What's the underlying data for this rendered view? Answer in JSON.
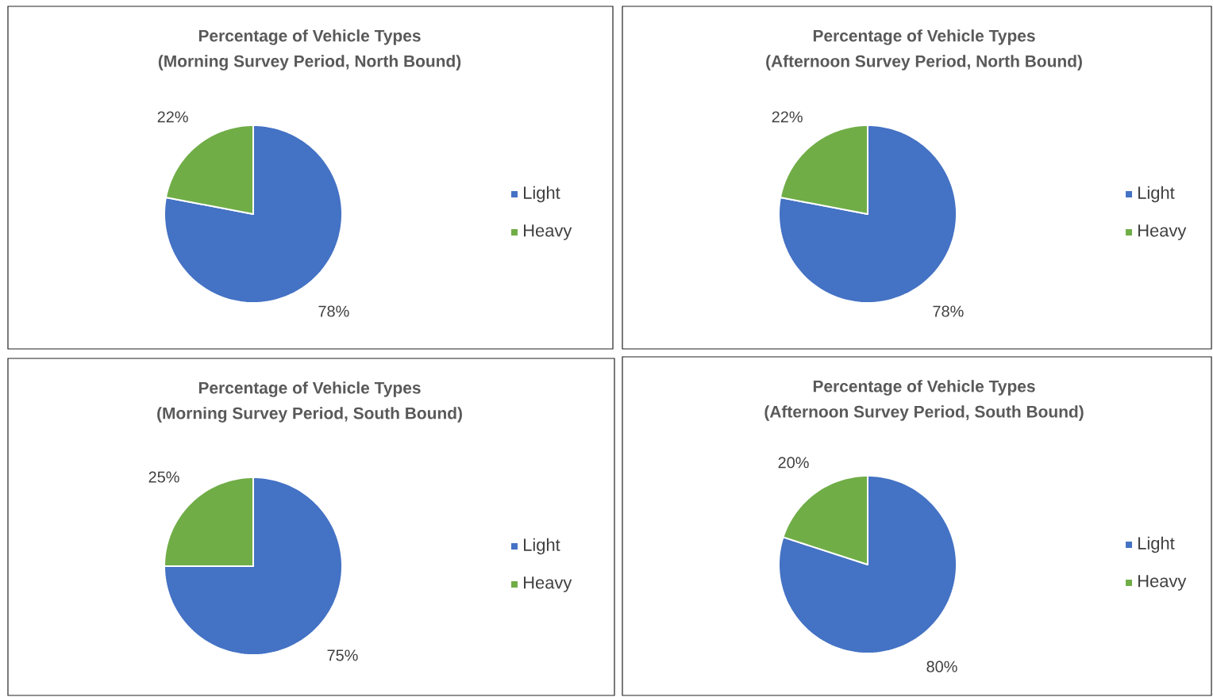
{
  "chart_data": [
    {
      "type": "pie",
      "title": "Percentage of Vehicle Types",
      "subtitle": "(Morning Survey Period, North Bound)",
      "categories": [
        "Light",
        "Heavy"
      ],
      "values": [
        78,
        22
      ],
      "colors": [
        "#4472c4",
        "#70ad47"
      ],
      "value_labels": [
        "78%",
        "22%"
      ],
      "legend": "right"
    },
    {
      "type": "pie",
      "title": "Percentage of Vehicle Types",
      "subtitle": "(Afternoon Survey Period, North Bound)",
      "categories": [
        "Light",
        "Heavy"
      ],
      "values": [
        78,
        22
      ],
      "colors": [
        "#4472c4",
        "#70ad47"
      ],
      "value_labels": [
        "78%",
        "22%"
      ],
      "legend": "right"
    },
    {
      "type": "pie",
      "title": "Percentage of Vehicle Types",
      "subtitle": "(Morning Survey Period, South Bound)",
      "categories": [
        "Light",
        "Heavy"
      ],
      "values": [
        75,
        25
      ],
      "colors": [
        "#4472c4",
        "#70ad47"
      ],
      "value_labels": [
        "75%",
        "25%"
      ],
      "legend": "right"
    },
    {
      "type": "pie",
      "title": "Percentage of Vehicle Types",
      "subtitle": "(Afternoon Survey Period, South Bound)",
      "categories": [
        "Light",
        "Heavy"
      ],
      "values": [
        80,
        20
      ],
      "colors": [
        "#4472c4",
        "#70ad47"
      ],
      "value_labels": [
        "80%",
        "20%"
      ],
      "legend": "right"
    }
  ]
}
